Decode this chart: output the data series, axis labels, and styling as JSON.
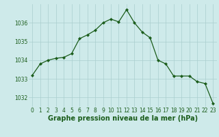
{
  "x": [
    0,
    1,
    2,
    3,
    4,
    5,
    6,
    7,
    8,
    9,
    10,
    11,
    12,
    13,
    14,
    15,
    16,
    17,
    18,
    19,
    20,
    21,
    22,
    23
  ],
  "y": [
    1033.2,
    1033.8,
    1034.0,
    1034.1,
    1034.15,
    1034.35,
    1035.15,
    1035.35,
    1035.6,
    1036.0,
    1036.2,
    1036.05,
    1036.7,
    1036.0,
    1035.5,
    1035.2,
    1034.0,
    1033.8,
    1033.15,
    1033.15,
    1033.15,
    1032.85,
    1032.75,
    1031.7
  ],
  "line_color": "#1a5c1a",
  "marker_color": "#1a5c1a",
  "bg_color": "#ceeaea",
  "grid_color": "#aacece",
  "xlabel": "Graphe pression niveau de la mer (hPa)",
  "xlabel_color": "#1a5c1a",
  "ylabel_ticks": [
    1032,
    1033,
    1034,
    1035,
    1036
  ],
  "xtick_labels": [
    "0",
    "1",
    "2",
    "3",
    "4",
    "5",
    "6",
    "7",
    "8",
    "9",
    "10",
    "11",
    "12",
    "13",
    "14",
    "15",
    "16",
    "17",
    "18",
    "19",
    "20",
    "21",
    "22",
    "23"
  ],
  "ylim": [
    1031.5,
    1037.0
  ],
  "xlim": [
    -0.5,
    23.5
  ],
  "tick_color": "#1a5c1a",
  "tick_fontsize": 5.5,
  "xlabel_fontsize": 7,
  "linewidth": 0.9,
  "markersize": 2.2
}
